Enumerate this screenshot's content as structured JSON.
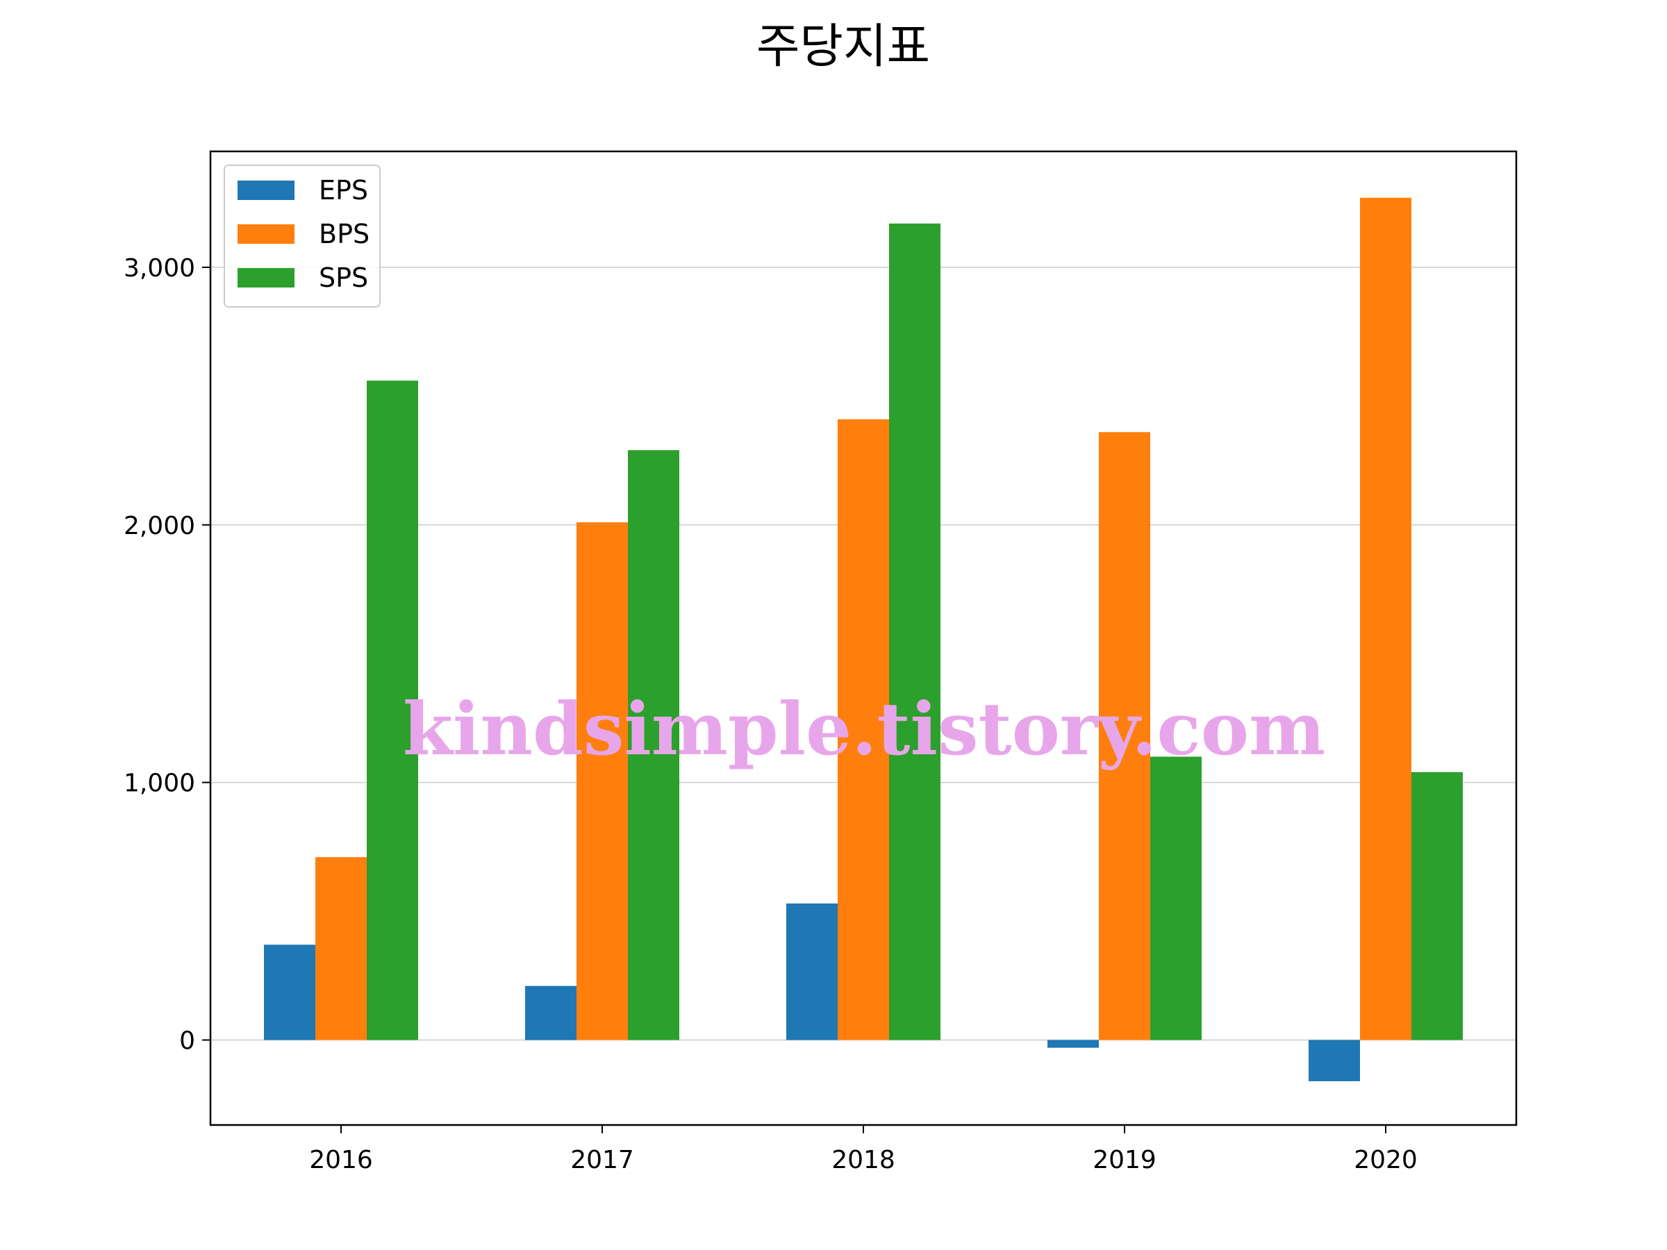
{
  "chart_data": {
    "type": "bar",
    "title": "주당지표",
    "categories": [
      "2016",
      "2017",
      "2018",
      "2019",
      "2020"
    ],
    "series": [
      {
        "name": "EPS",
        "color": "#1f77b4",
        "values": [
          370,
          210,
          530,
          -30,
          -160
        ]
      },
      {
        "name": "BPS",
        "color": "#ff7f0e",
        "values": [
          710,
          2010,
          2410,
          2360,
          3270
        ]
      },
      {
        "name": "SPS",
        "color": "#2ca02c",
        "values": [
          2560,
          2290,
          3170,
          1100,
          1040
        ]
      }
    ],
    "ylim": [
      -330,
      3450
    ],
    "yticks": [
      0,
      1000,
      2000,
      3000
    ],
    "ytick_labels": [
      "0",
      "1,000",
      "2,000",
      "3,000"
    ],
    "grid": "horizontal",
    "legend_position": "top-left"
  },
  "watermark": "kindsimple.tistory.com"
}
